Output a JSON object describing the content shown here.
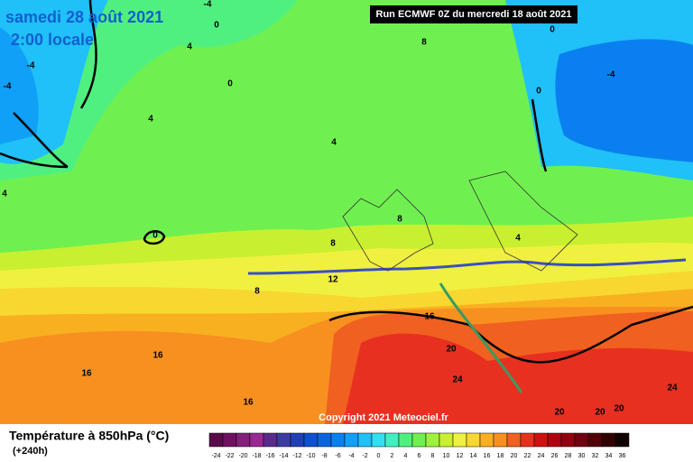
{
  "header": {
    "title": "samedi 28 août 2021",
    "subtitle": "2:00 locale",
    "run": "Run ECMWF 0Z du mercredi 18 août 2021"
  },
  "map": {
    "copyright": "Copyright 2021 Meteociel.fr",
    "contour_labels": [
      "-4",
      "0",
      "4",
      "-4",
      "-4",
      "0",
      "4",
      "4",
      "4",
      "0",
      "8",
      "0",
      "0",
      "-4",
      "8",
      "8",
      "4",
      "8",
      "12",
      "16",
      "20",
      "16",
      "16",
      "24",
      "16",
      "24",
      "20",
      "20",
      "20"
    ]
  },
  "legend": {
    "title": "Température à 850hPa (°C)",
    "lead": "(+240h)",
    "labels": [
      -24,
      -22,
      -20,
      -18,
      -16,
      -14,
      -12,
      -10,
      -8,
      -6,
      -4,
      -2,
      0,
      2,
      4,
      6,
      8,
      10,
      12,
      14,
      16,
      18,
      20,
      22,
      24,
      26,
      28,
      30,
      32,
      34,
      36
    ],
    "colors": [
      "#5a0a4a",
      "#6e1060",
      "#82207a",
      "#962a92",
      "#5a2a8a",
      "#3c3ca0",
      "#2040b8",
      "#1050d0",
      "#0a64e0",
      "#0a80f0",
      "#10a0f8",
      "#20c0f8",
      "#30e0f0",
      "#40f0c0",
      "#50f080",
      "#70f050",
      "#a0f040",
      "#c8f030",
      "#f0f040",
      "#f8d830",
      "#f8b020",
      "#f89020",
      "#f06020",
      "#e83020",
      "#d01010",
      "#b00010",
      "#900010",
      "#700010",
      "#500008",
      "#300000",
      "#100000"
    ]
  }
}
